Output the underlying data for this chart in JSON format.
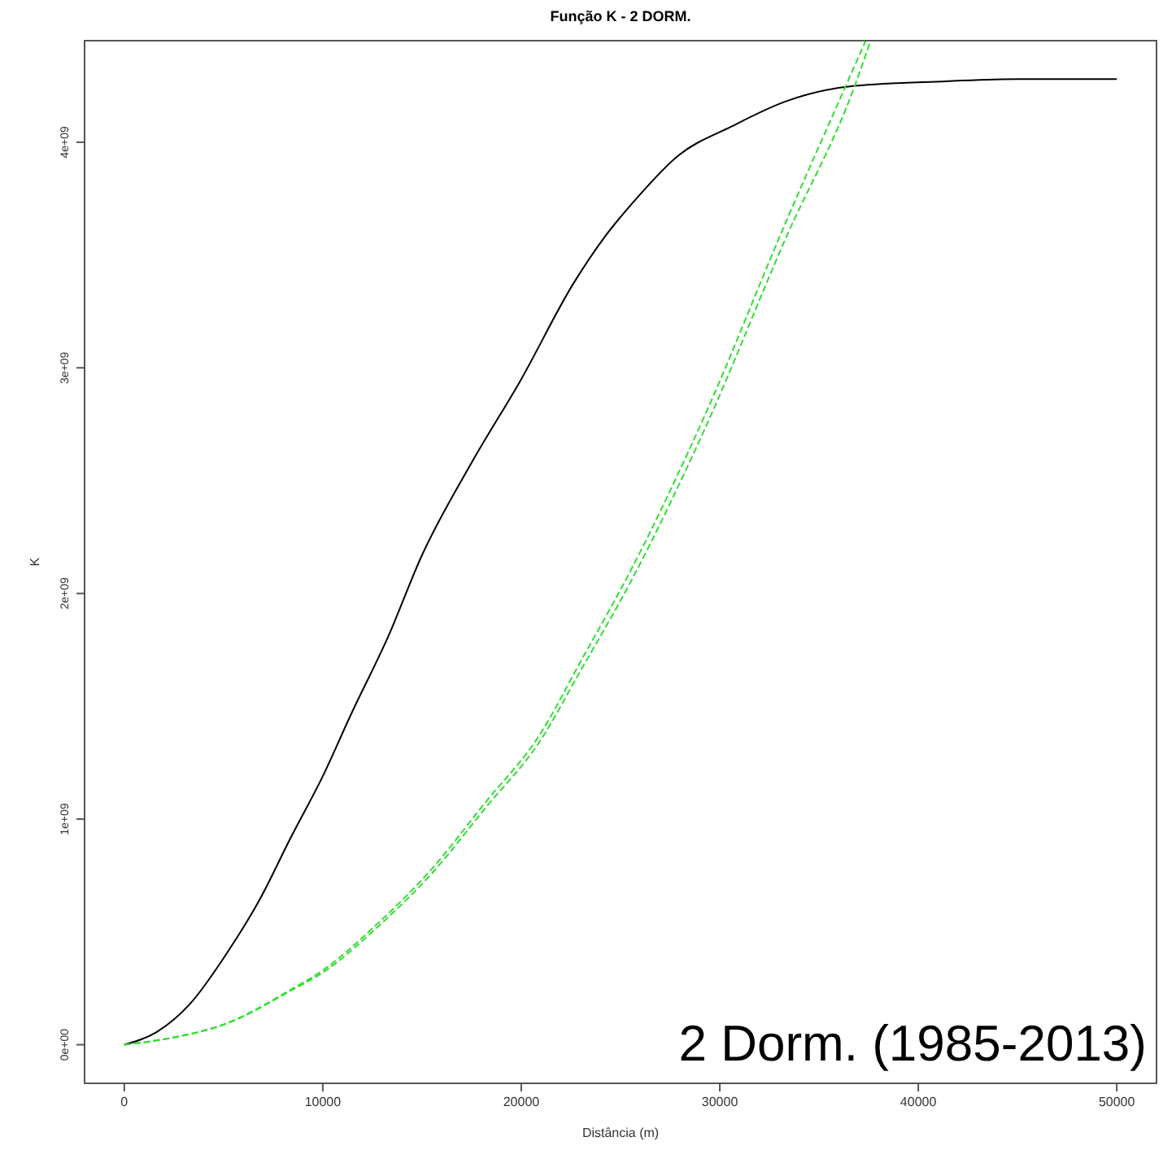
{
  "chart_data": {
    "type": "line",
    "title": "Função K - 2 DORM.",
    "xlabel": "Distância (m)",
    "ylabel": "K",
    "annotations": [
      "2 Dorm. (1985-2013)"
    ],
    "xlim": [
      -2000,
      52000
    ],
    "xticks": [
      0,
      10000,
      20000,
      30000,
      40000,
      50000
    ],
    "ylim": [
      -171000000,
      4450000000
    ],
    "yticks": [
      {
        "value": 0,
        "label": "0e+00"
      },
      {
        "value": 1000000000,
        "label": "1e+09"
      },
      {
        "value": 2000000000,
        "label": "2e+09"
      },
      {
        "value": 3000000000,
        "label": "3e+09"
      },
      {
        "value": 4000000000,
        "label": "4e+09"
      }
    ],
    "marker": "none",
    "series": [
      {
        "color": "#000000",
        "line_style": "solid",
        "x": [
          0,
          1700,
          3300,
          5200,
          6800,
          8400,
          10000,
          11400,
          13300,
          15000,
          17500,
          20000,
          22600,
          24200,
          25800,
          27900,
          30600,
          33300,
          36800,
          41400,
          45000,
          50000
        ],
        "values": [
          0,
          60000000,
          180000000,
          410000000,
          640000000,
          920000000,
          1190000000,
          1460000000,
          1810000000,
          2170000000,
          2580000000,
          2950000000,
          3370000000,
          3580000000,
          3750000000,
          3940000000,
          4070000000,
          4180000000,
          4250000000,
          4270000000,
          4280000000,
          4280000000
        ]
      },
      {
        "color": "#33dd33",
        "line_style": "dashed",
        "x": [
          0,
          2000,
          5200,
          8400,
          10000,
          12800,
          15500,
          18200,
          20900,
          23000,
          25500,
          29300,
          33300,
          36800,
          37600
        ],
        "values": [
          0,
          24000000,
          95000000,
          240000000,
          320000000,
          525000000,
          760000000,
          1050000000,
          1340000000,
          1660000000,
          2050000000,
          2740000000,
          3570000000,
          4250000000,
          4450000000
        ]
      },
      {
        "color": "#33dd33",
        "line_style": "dashed",
        "x": [
          0,
          2000,
          5200,
          8400,
          10000,
          12800,
          15500,
          18200,
          20900,
          23000,
          25500,
          29300,
          33300,
          36800,
          37350
        ],
        "values": [
          0,
          25000000,
          97000000,
          245000000,
          330000000,
          540000000,
          780000000,
          1075000000,
          1370000000,
          1700000000,
          2100000000,
          2800000000,
          3640000000,
          4340000000,
          4450000000
        ]
      }
    ]
  }
}
